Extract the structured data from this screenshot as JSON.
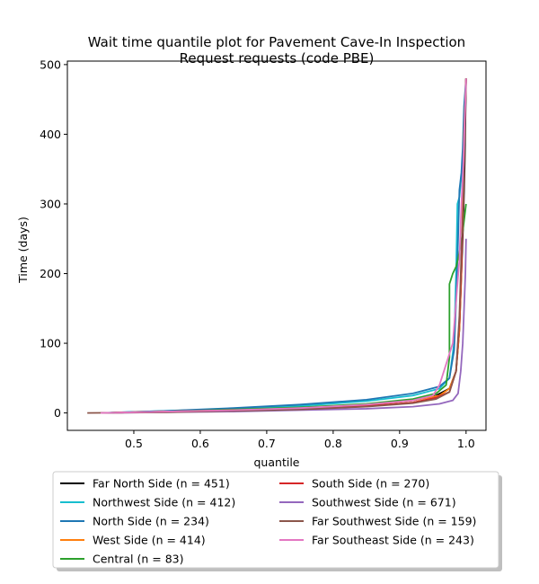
{
  "chart_data": {
    "type": "line",
    "title": "Wait time quantile plot for Pavement Cave-In Inspection\nRequest  requests (code PBE)",
    "xlabel": "quantile",
    "ylabel": "Time (days)",
    "xlim": [
      0.4,
      1.03
    ],
    "ylim": [
      -25,
      505
    ],
    "xticks": [
      0.5,
      0.6,
      0.7,
      0.8,
      0.9,
      1.0
    ],
    "xtick_labels": [
      "0.5",
      "0.6",
      "0.7",
      "0.8",
      "0.9",
      "1.0"
    ],
    "yticks": [
      0,
      100,
      200,
      300,
      400,
      500
    ],
    "ytick_labels": [
      "0",
      "100",
      "200",
      "300",
      "400",
      "500"
    ],
    "grid": false,
    "legend_position": "below-plot",
    "series": [
      {
        "name": "Far North Side (n = 451)",
        "color": "#000000",
        "x": [
          0.45,
          0.55,
          0.65,
          0.75,
          0.85,
          0.92,
          0.955,
          0.975,
          0.985,
          0.99,
          0.993,
          0.996,
          0.998,
          0.999,
          1.0
        ],
        "y": [
          0,
          2,
          4,
          7,
          12,
          18,
          25,
          35,
          60,
          120,
          200,
          280,
          360,
          420,
          480
        ]
      },
      {
        "name": "Northwest Side (n = 412)",
        "color": "#17becf",
        "x": [
          0.45,
          0.55,
          0.65,
          0.75,
          0.85,
          0.92,
          0.96,
          0.975,
          0.982,
          0.985,
          0.987,
          0.99,
          0.995,
          0.998,
          1.0
        ],
        "y": [
          0,
          3,
          6,
          10,
          17,
          25,
          35,
          50,
          100,
          200,
          300,
          310,
          360,
          420,
          480
        ]
      },
      {
        "name": "North Side (n = 234)",
        "color": "#1f77b4",
        "x": [
          0.45,
          0.55,
          0.65,
          0.75,
          0.85,
          0.92,
          0.96,
          0.975,
          0.982,
          0.985,
          0.988,
          0.99,
          0.993,
          0.995,
          0.997,
          1.0
        ],
        "y": [
          0,
          3,
          7,
          12,
          19,
          28,
          38,
          50,
          90,
          160,
          250,
          320,
          345,
          380,
          440,
          480
        ]
      },
      {
        "name": "West Side (n = 414)",
        "color": "#ff7f0e",
        "x": [
          0.45,
          0.55,
          0.65,
          0.75,
          0.85,
          0.92,
          0.96,
          0.975,
          0.985,
          0.99,
          0.993,
          0.995,
          0.997,
          1.0
        ],
        "y": [
          0,
          2,
          4,
          7,
          12,
          18,
          25,
          35,
          60,
          120,
          200,
          300,
          400,
          480
        ]
      },
      {
        "name": "Central (n = 83)",
        "color": "#2ca02c",
        "x": [
          0.45,
          0.55,
          0.65,
          0.75,
          0.85,
          0.92,
          0.955,
          0.97,
          0.975,
          0.975,
          0.98,
          0.985,
          0.99,
          0.995,
          1.0
        ],
        "y": [
          0,
          2,
          5,
          8,
          13,
          20,
          28,
          40,
          80,
          185,
          200,
          210,
          230,
          260,
          300
        ]
      },
      {
        "name": "South Side (n = 270)",
        "color": "#d62728",
        "x": [
          0.45,
          0.55,
          0.65,
          0.75,
          0.85,
          0.92,
          0.955,
          0.975,
          0.985,
          0.99,
          0.993,
          0.996,
          0.998,
          1.0
        ],
        "y": [
          0,
          2,
          4,
          6,
          10,
          15,
          22,
          30,
          60,
          130,
          210,
          300,
          400,
          480
        ]
      },
      {
        "name": "Southwest Side (n = 671)",
        "color": "#9467bd",
        "x": [
          0.45,
          0.55,
          0.65,
          0.75,
          0.85,
          0.92,
          0.96,
          0.98,
          0.988,
          0.992,
          0.995,
          0.997,
          0.999,
          1.0
        ],
        "y": [
          0,
          1,
          2,
          4,
          6,
          9,
          13,
          18,
          28,
          60,
          100,
          150,
          200,
          250
        ]
      },
      {
        "name": "Far Southwest Side (n = 159)",
        "color": "#8c564b",
        "x": [
          0.43,
          0.55,
          0.65,
          0.75,
          0.85,
          0.92,
          0.955,
          0.975,
          0.985,
          0.99,
          0.993,
          0.996,
          0.998,
          1.0
        ],
        "y": [
          0,
          1,
          3,
          5,
          9,
          14,
          20,
          30,
          60,
          140,
          230,
          300,
          400,
          480
        ]
      },
      {
        "name": "Far Southeast Side (n = 243)",
        "color": "#e377c2",
        "x": [
          0.45,
          0.55,
          0.65,
          0.75,
          0.85,
          0.92,
          0.95,
          0.96,
          0.97,
          0.98,
          0.985,
          0.99,
          0.993,
          0.996,
          0.998,
          1.0
        ],
        "y": [
          0,
          2,
          4,
          7,
          12,
          18,
          25,
          40,
          70,
          100,
          160,
          220,
          300,
          360,
          420,
          480
        ]
      }
    ]
  }
}
